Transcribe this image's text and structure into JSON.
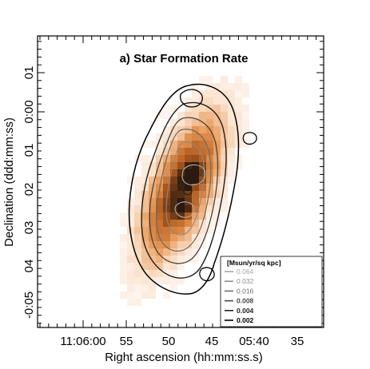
{
  "chart_data": {
    "type": "heatmap",
    "title": "a) Star Formation Rate",
    "xlabel": "Right ascension (hh:mm:ss.s)",
    "ylabel": "Declination (ddd:mm:ss)",
    "x_ticks": [
      "11:06:00",
      "55",
      "50",
      "45",
      "05:40",
      "35"
    ],
    "y_ticks": [
      "01",
      "0:00",
      "01",
      "02",
      "03",
      "04",
      "-0:05"
    ],
    "legend": {
      "title": "[Msun/yr/sq kpc]",
      "placement": "lower-right",
      "levels": [
        {
          "label": "0.064",
          "color": "#a6a6a6"
        },
        {
          "label": "0.032",
          "color": "#8c8c8c"
        },
        {
          "label": "0.016",
          "color": "#6e6e6e"
        },
        {
          "label": "0.008",
          "color": "#4a4a4a"
        },
        {
          "label": "0.004",
          "color": "#222222"
        },
        {
          "label": "0.002",
          "color": "#000000"
        }
      ]
    },
    "colors": {
      "light": "#fbe4d0",
      "mid": "#e99a56",
      "dark": "#b05a1c",
      "core": "#2a1a10"
    }
  }
}
